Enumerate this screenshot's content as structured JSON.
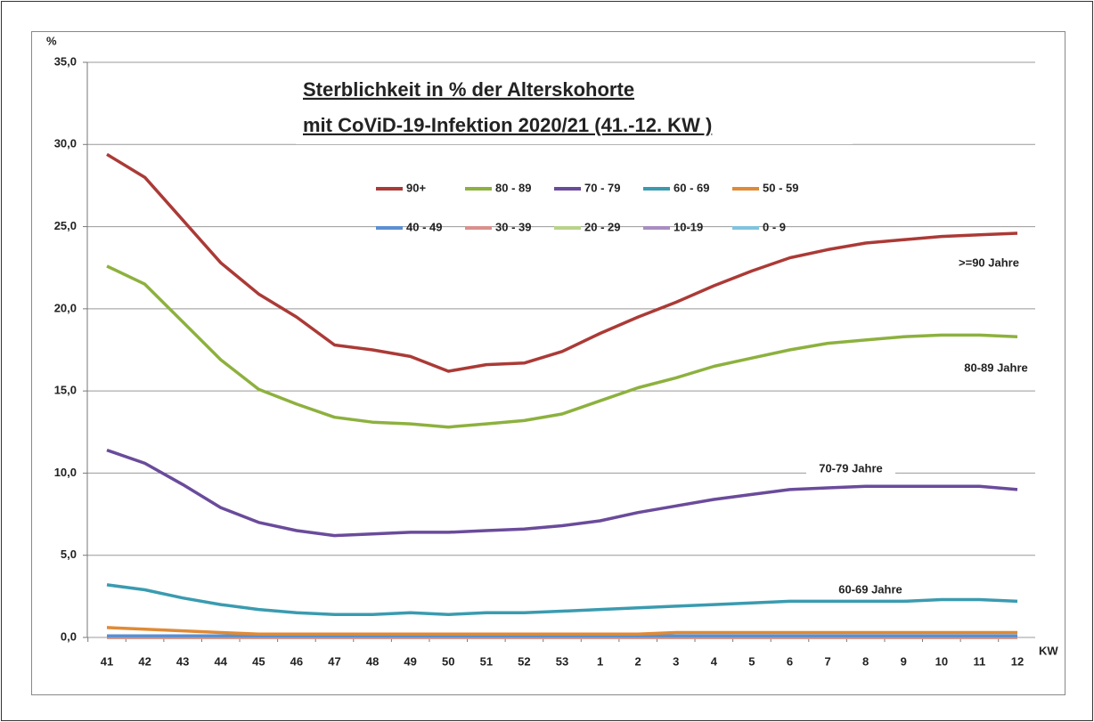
{
  "chart_data": {
    "type": "line",
    "title": [
      "Sterblichkeit in % der Alterskohorte",
      "mit CoViD-19-Infektion 2020/21 (41.-12. KW )"
    ],
    "y_label": "%",
    "x_label": "KW",
    "categories": [
      "41",
      "42",
      "43",
      "44",
      "45",
      "46",
      "47",
      "48",
      "49",
      "50",
      "51",
      "52",
      "53",
      "1",
      "2",
      "3",
      "4",
      "5",
      "6",
      "7",
      "8",
      "9",
      "10",
      "11",
      "12"
    ],
    "ylim": [
      0,
      35
    ],
    "yticks": [
      {
        "value": 0,
        "label": "0,0"
      },
      {
        "value": 5,
        "label": "5,0"
      },
      {
        "value": 10,
        "label": "10,0"
      },
      {
        "value": 15,
        "label": "15,0"
      },
      {
        "value": 20,
        "label": "20,0"
      },
      {
        "value": 25,
        "label": "25,0"
      },
      {
        "value": 30,
        "label": "30,0"
      },
      {
        "value": 35,
        "label": "35,0"
      }
    ],
    "grid": true,
    "series": [
      {
        "name": "90+",
        "color": "#ab3a36",
        "values": [
          29.4,
          28.0,
          25.4,
          22.8,
          20.9,
          19.5,
          17.8,
          17.5,
          17.1,
          16.2,
          16.6,
          16.7,
          17.4,
          18.5,
          19.5,
          20.4,
          21.4,
          22.3,
          23.1,
          23.6,
          24.0,
          24.2,
          24.4,
          24.5,
          24.6
        ]
      },
      {
        "name": "80 - 89",
        "color": "#8db13e",
        "values": [
          22.6,
          21.5,
          19.2,
          16.9,
          15.1,
          14.2,
          13.4,
          13.1,
          13.0,
          12.8,
          13.0,
          13.2,
          13.6,
          14.4,
          15.2,
          15.8,
          16.5,
          17.0,
          17.5,
          17.9,
          18.1,
          18.3,
          18.4,
          18.4,
          18.3
        ]
      },
      {
        "name": "70 - 79",
        "color": "#6a4b9b",
        "values": [
          11.4,
          10.6,
          9.3,
          7.9,
          7.0,
          6.5,
          6.2,
          6.3,
          6.4,
          6.4,
          6.5,
          6.6,
          6.8,
          7.1,
          7.6,
          8.0,
          8.4,
          8.7,
          9.0,
          9.1,
          9.2,
          9.2,
          9.2,
          9.2,
          9.0
        ]
      },
      {
        "name": "60 - 69",
        "color": "#3a9bb0",
        "values": [
          3.2,
          2.9,
          2.4,
          2.0,
          1.7,
          1.5,
          1.4,
          1.4,
          1.5,
          1.4,
          1.5,
          1.5,
          1.6,
          1.7,
          1.8,
          1.9,
          2.0,
          2.1,
          2.2,
          2.2,
          2.2,
          2.2,
          2.3,
          2.3,
          2.2
        ]
      },
      {
        "name": "50 - 59",
        "color": "#e08a35",
        "values": [
          0.6,
          0.5,
          0.4,
          0.3,
          0.2,
          0.2,
          0.2,
          0.2,
          0.2,
          0.2,
          0.2,
          0.2,
          0.2,
          0.2,
          0.2,
          0.3,
          0.3,
          0.3,
          0.3,
          0.3,
          0.3,
          0.3,
          0.3,
          0.3,
          0.3
        ]
      },
      {
        "name": "40 - 49",
        "color": "#5b8fd0",
        "values": [
          0.1,
          0.1,
          0.1,
          0.1,
          0.1,
          0.1,
          0.1,
          0.1,
          0.1,
          0.1,
          0.1,
          0.1,
          0.1,
          0.1,
          0.1,
          0.1,
          0.1,
          0.1,
          0.1,
          0.1,
          0.1,
          0.1,
          0.1,
          0.1,
          0.1
        ]
      },
      {
        "name": "30 - 39",
        "color": "#d9908c",
        "values": [
          0,
          0,
          0,
          0,
          0,
          0,
          0,
          0,
          0,
          0,
          0,
          0,
          0,
          0,
          0,
          0,
          0,
          0,
          0,
          0,
          0,
          0,
          0,
          0,
          0
        ]
      },
      {
        "name": "20 - 29",
        "color": "#b9d38a",
        "values": [
          0,
          0,
          0,
          0,
          0,
          0,
          0,
          0,
          0,
          0,
          0,
          0,
          0,
          0,
          0,
          0,
          0,
          0,
          0,
          0,
          0,
          0,
          0,
          0,
          0
        ]
      },
      {
        "name": "10-19",
        "color": "#a88dc0",
        "values": [
          0,
          0,
          0,
          0,
          0,
          0,
          0,
          0,
          0,
          0,
          0,
          0,
          0,
          0,
          0,
          0,
          0,
          0,
          0,
          0,
          0,
          0,
          0,
          0,
          0
        ]
      },
      {
        "name": "0 - 9",
        "color": "#80c4de",
        "values": [
          0,
          0,
          0,
          0,
          0,
          0,
          0,
          0,
          0,
          0,
          0,
          0,
          0,
          0,
          0,
          0,
          0,
          0,
          0,
          0,
          0,
          0,
          0,
          0,
          0
        ]
      }
    ],
    "annotations": [
      ">=90 Jahre",
      "80-89 Jahre",
      "70-79 Jahre",
      "60-69 Jahre"
    ]
  }
}
